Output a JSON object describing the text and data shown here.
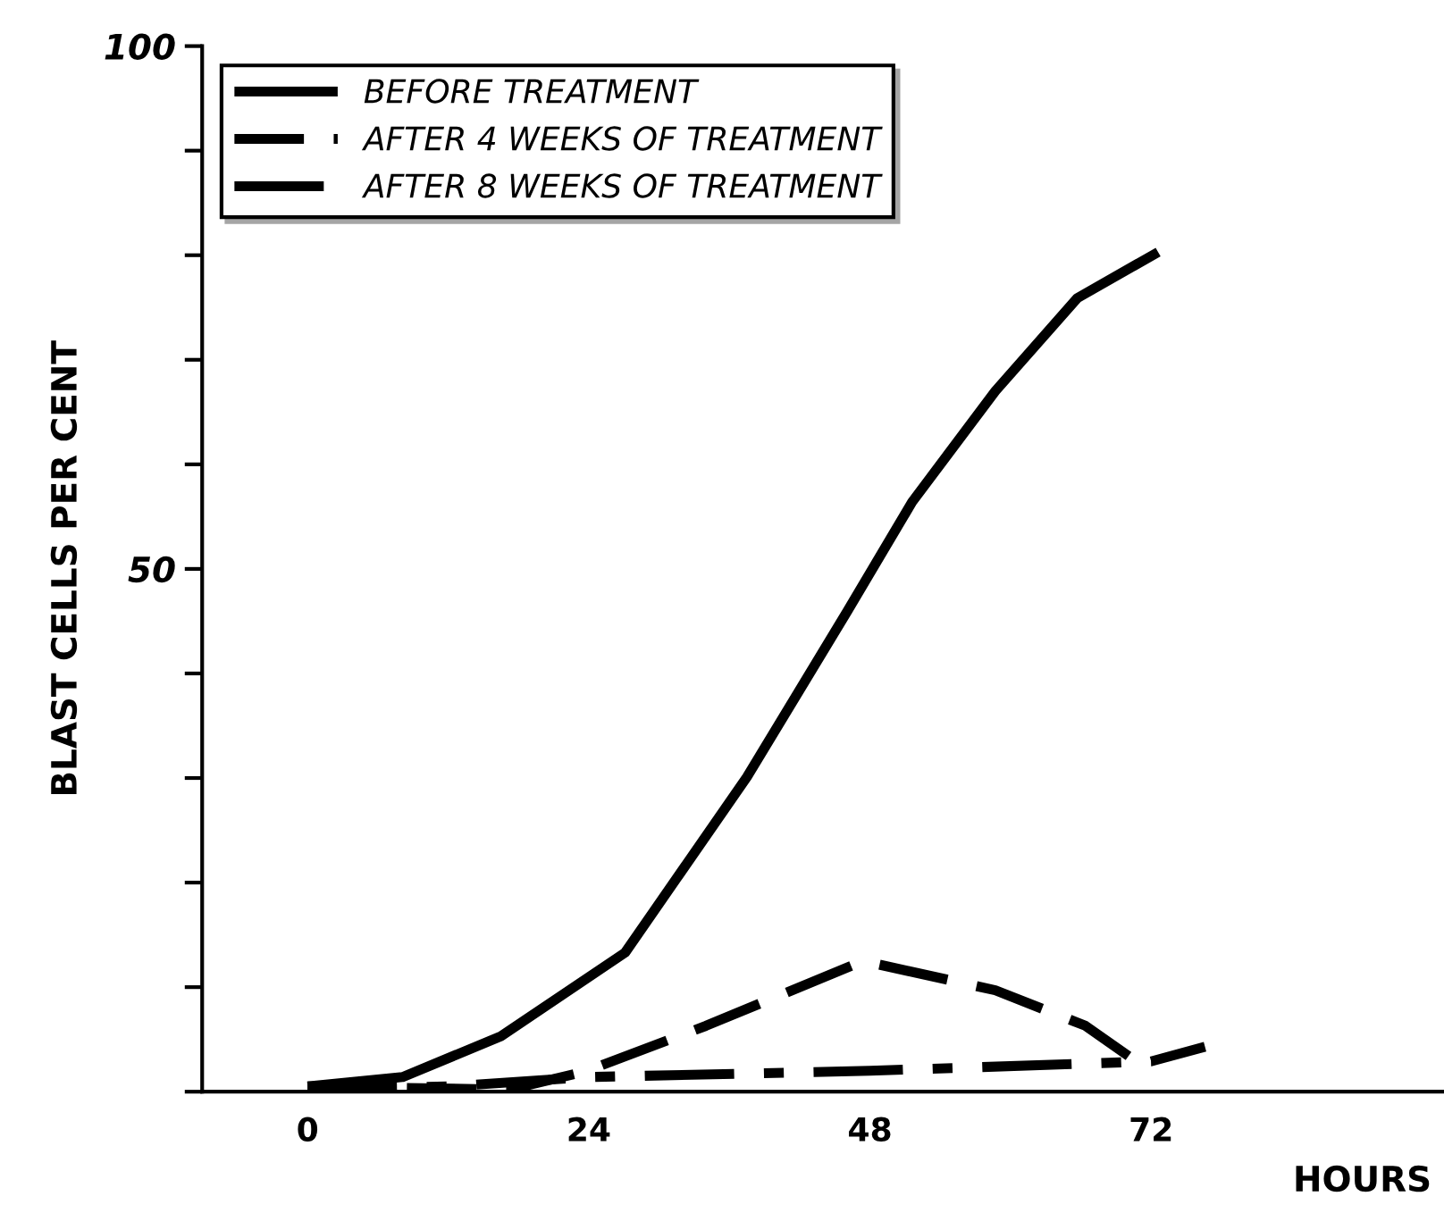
{
  "chart_data": {
    "type": "line",
    "xlabel": "HOURS",
    "ylabel": "BLAST CELLS PER CENT",
    "xlim": [
      -9,
      97
    ],
    "ylim": [
      0,
      100
    ],
    "xticks": [
      0,
      24,
      48,
      72
    ],
    "yticks": [
      {
        "value": 0,
        "label": null
      },
      {
        "value": 10,
        "label": null
      },
      {
        "value": 20,
        "label": null
      },
      {
        "value": 30,
        "label": null
      },
      {
        "value": 40,
        "label": null
      },
      50,
      {
        "value": 60,
        "label": null
      },
      {
        "value": 70,
        "label": null
      },
      {
        "value": 80,
        "label": null
      },
      {
        "value": 90,
        "label": null
      },
      100
    ],
    "legend": "top left",
    "grid": false,
    "series": [
      {
        "name": "BEFORE TREATMENT",
        "color": "#000000",
        "line_style": "solid",
        "x": [
          0,
          8.1,
          16.5,
          27.1,
          37.5,
          46.1,
          51.6,
          58.7,
          65.7,
          72.6
        ],
        "values": [
          0.5,
          1.4,
          5.3,
          13.3,
          30.1,
          46.0,
          56.4,
          67,
          75.9,
          80.3
        ]
      },
      {
        "name": "AFTER 4 WEEKS OF TREATMENT",
        "color": "#000000",
        "line_style": "dashed",
        "x": [
          0,
          17.2,
          23.6,
          34,
          47.4,
          58.7,
          66.4,
          72
        ],
        "values": [
          0.5,
          0.2,
          1.9,
          6.3,
          12.5,
          9.7,
          6.3,
          1.9
        ]
      },
      {
        "name": "AFTER 8 WEEKS OF TREATMENT",
        "color": "#000000",
        "line_style": "dashdot",
        "x": [
          0,
          12,
          24,
          48,
          72,
          76.6
        ],
        "values": [
          0.3,
          0.5,
          1.4,
          2.0,
          2.9,
          4.3
        ]
      }
    ]
  }
}
